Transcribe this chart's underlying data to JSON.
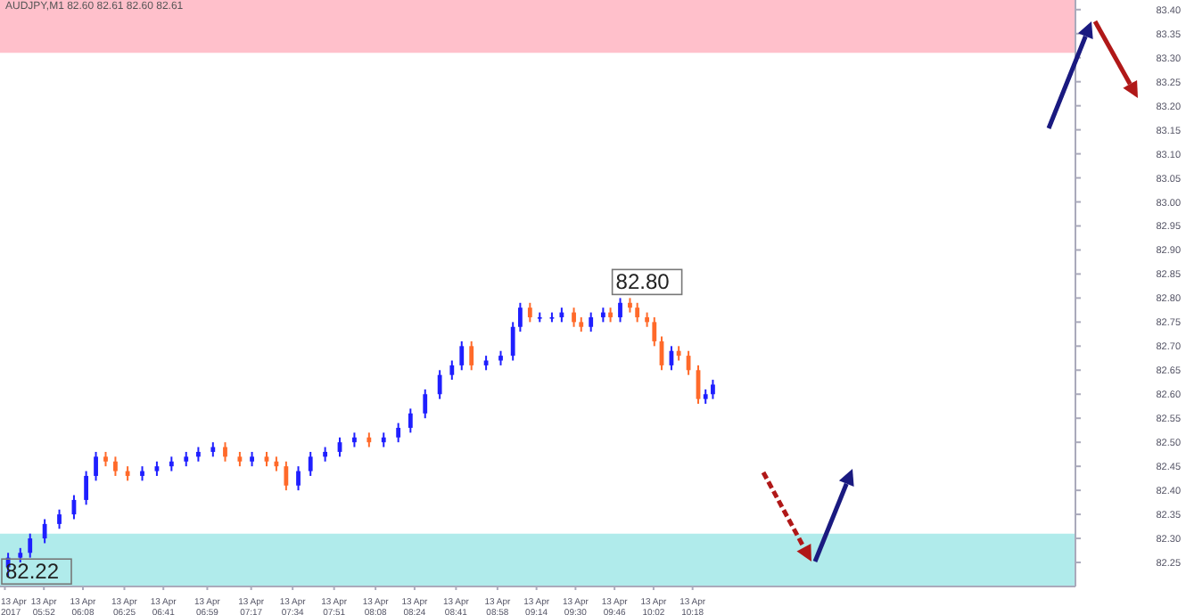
{
  "chart_data": {
    "type": "candlestick",
    "title": "AUDJPY,M1 82.60 82.61 82.60 82.61",
    "x": [
      "2017-04-13T05:37",
      "2017-04-13T05:42",
      "2017-04-13T05:46",
      "2017-04-13T05:52",
      "2017-04-13T05:58",
      "2017-04-13T06:04",
      "2017-04-13T06:09",
      "2017-04-13T06:13",
      "2017-04-13T06:17",
      "2017-04-13T06:21",
      "2017-04-13T06:26",
      "2017-04-13T06:32",
      "2017-04-13T06:38",
      "2017-04-13T06:44",
      "2017-04-13T06:50",
      "2017-04-13T06:55",
      "2017-04-13T07:01",
      "2017-04-13T07:06",
      "2017-04-13T07:12",
      "2017-04-13T07:17",
      "2017-04-13T07:23",
      "2017-04-13T07:27",
      "2017-04-13T07:31",
      "2017-04-13T07:36",
      "2017-04-13T07:41",
      "2017-04-13T07:47",
      "2017-04-13T07:53",
      "2017-04-13T07:59",
      "2017-04-13T08:05",
      "2017-04-13T08:11",
      "2017-04-13T08:17",
      "2017-04-13T08:22",
      "2017-04-13T08:28",
      "2017-04-13T08:34",
      "2017-04-13T08:39",
      "2017-04-13T08:43",
      "2017-04-13T08:47",
      "2017-04-13T08:53",
      "2017-04-13T08:59",
      "2017-04-13T09:04",
      "2017-04-13T09:07",
      "2017-04-13T09:11",
      "2017-04-13T09:15",
      "2017-04-13T09:20",
      "2017-04-13T09:24",
      "2017-04-13T09:29",
      "2017-04-13T09:32",
      "2017-04-13T09:36",
      "2017-04-13T09:41",
      "2017-04-13T09:44",
      "2017-04-13T09:48",
      "2017-04-13T09:52",
      "2017-04-13T09:55",
      "2017-04-13T09:59",
      "2017-04-13T10:02",
      "2017-04-13T10:05",
      "2017-04-13T10:09",
      "2017-04-13T10:12",
      "2017-04-13T10:16",
      "2017-04-13T10:20",
      "2017-04-13T10:23",
      "2017-04-13T10:26"
    ],
    "ohlc": [
      [
        82.24,
        82.27,
        82.22,
        82.26
      ],
      [
        82.26,
        82.28,
        82.25,
        82.27
      ],
      [
        82.27,
        82.31,
        82.26,
        82.3
      ],
      [
        82.3,
        82.34,
        82.29,
        82.33
      ],
      [
        82.33,
        82.36,
        82.32,
        82.35
      ],
      [
        82.35,
        82.39,
        82.34,
        82.38
      ],
      [
        82.38,
        82.44,
        82.37,
        82.43
      ],
      [
        82.43,
        82.48,
        82.42,
        82.47
      ],
      [
        82.47,
        82.48,
        82.45,
        82.46
      ],
      [
        82.46,
        82.47,
        82.43,
        82.44
      ],
      [
        82.44,
        82.45,
        82.42,
        82.43
      ],
      [
        82.43,
        82.45,
        82.42,
        82.44
      ],
      [
        82.44,
        82.46,
        82.43,
        82.45
      ],
      [
        82.45,
        82.47,
        82.44,
        82.46
      ],
      [
        82.46,
        82.48,
        82.45,
        82.47
      ],
      [
        82.47,
        82.49,
        82.46,
        82.48
      ],
      [
        82.48,
        82.5,
        82.47,
        82.49
      ],
      [
        82.49,
        82.5,
        82.46,
        82.47
      ],
      [
        82.47,
        82.48,
        82.45,
        82.46
      ],
      [
        82.46,
        82.48,
        82.45,
        82.47
      ],
      [
        82.47,
        82.48,
        82.45,
        82.46
      ],
      [
        82.46,
        82.47,
        82.44,
        82.45
      ],
      [
        82.45,
        82.46,
        82.4,
        82.41
      ],
      [
        82.41,
        82.45,
        82.4,
        82.44
      ],
      [
        82.44,
        82.48,
        82.43,
        82.47
      ],
      [
        82.47,
        82.49,
        82.46,
        82.48
      ],
      [
        82.48,
        82.51,
        82.47,
        82.5
      ],
      [
        82.5,
        82.52,
        82.49,
        82.51
      ],
      [
        82.51,
        82.52,
        82.49,
        82.5
      ],
      [
        82.5,
        82.52,
        82.49,
        82.51
      ],
      [
        82.51,
        82.54,
        82.5,
        82.53
      ],
      [
        82.53,
        82.57,
        82.52,
        82.56
      ],
      [
        82.56,
        82.61,
        82.55,
        82.6
      ],
      [
        82.6,
        82.65,
        82.59,
        82.64
      ],
      [
        82.64,
        82.67,
        82.63,
        82.66
      ],
      [
        82.66,
        82.71,
        82.65,
        82.7
      ],
      [
        82.7,
        82.71,
        82.65,
        82.66
      ],
      [
        82.66,
        82.68,
        82.65,
        82.67
      ],
      [
        82.67,
        82.69,
        82.66,
        82.68
      ],
      [
        82.68,
        82.75,
        82.67,
        82.74
      ],
      [
        82.74,
        82.79,
        82.73,
        82.78
      ],
      [
        82.78,
        82.79,
        82.75,
        82.76
      ],
      [
        82.76,
        82.77,
        82.75,
        82.76
      ],
      [
        82.76,
        82.77,
        82.75,
        82.76
      ],
      [
        82.76,
        82.78,
        82.75,
        82.77
      ],
      [
        82.77,
        82.78,
        82.74,
        82.75
      ],
      [
        82.75,
        82.76,
        82.73,
        82.74
      ],
      [
        82.74,
        82.77,
        82.73,
        82.76
      ],
      [
        82.76,
        82.78,
        82.75,
        82.77
      ],
      [
        82.77,
        82.78,
        82.75,
        82.76
      ],
      [
        82.76,
        82.8,
        82.75,
        82.79
      ],
      [
        82.79,
        82.8,
        82.77,
        82.78
      ],
      [
        82.78,
        82.79,
        82.75,
        82.76
      ],
      [
        82.76,
        82.77,
        82.74,
        82.75
      ],
      [
        82.75,
        82.76,
        82.7,
        82.71
      ],
      [
        82.71,
        82.72,
        82.65,
        82.66
      ],
      [
        82.66,
        82.7,
        82.65,
        82.69
      ],
      [
        82.69,
        82.7,
        82.67,
        82.68
      ],
      [
        82.68,
        82.69,
        82.64,
        82.65
      ],
      [
        82.65,
        82.66,
        82.58,
        82.59
      ],
      [
        82.59,
        82.61,
        82.58,
        82.6
      ],
      [
        82.6,
        82.63,
        82.59,
        82.62
      ]
    ],
    "colors": [
      "#1f1fff",
      "#1f1fff",
      "#1f1fff",
      "#1f1fff",
      "#1f1fff",
      "#1f1fff",
      "#1f1fff",
      "#1f1fff",
      "#ff6a2a",
      "#ff6a2a",
      "#ff6a2a",
      "#1f1fff",
      "#1f1fff",
      "#1f1fff",
      "#1f1fff",
      "#1f1fff",
      "#1f1fff",
      "#ff6a2a",
      "#ff6a2a",
      "#1f1fff",
      "#ff6a2a",
      "#ff6a2a",
      "#ff6a2a",
      "#1f1fff",
      "#1f1fff",
      "#1f1fff",
      "#1f1fff",
      "#1f1fff",
      "#ff6a2a",
      "#1f1fff",
      "#1f1fff",
      "#1f1fff",
      "#1f1fff",
      "#1f1fff",
      "#1f1fff",
      "#1f1fff",
      "#ff6a2a",
      "#1f1fff",
      "#1f1fff",
      "#1f1fff",
      "#1f1fff",
      "#ff6a2a",
      "#1f1fff",
      "#1f1fff",
      "#1f1fff",
      "#ff6a2a",
      "#ff6a2a",
      "#1f1fff",
      "#1f1fff",
      "#ff6a2a",
      "#1f1fff",
      "#ff6a2a",
      "#ff6a2a",
      "#ff6a2a",
      "#ff6a2a",
      "#ff6a2a",
      "#1f1fff",
      "#ff6a2a",
      "#ff6a2a",
      "#ff6a2a",
      "#1f1fff",
      "#1f1fff"
    ],
    "xlim": [
      "2017-04-13T05:34",
      "2017-04-13T12:55"
    ],
    "xticks": [
      {
        "value": "2017-04-13T05:36",
        "label": "13 Apr 2017"
      },
      {
        "value": "2017-04-13T05:52",
        "label": "13 Apr 05:52"
      },
      {
        "value": "2017-04-13T06:08",
        "label": "13 Apr 06:08"
      },
      {
        "value": "2017-04-13T06:25",
        "label": "13 Apr 06:25"
      },
      {
        "value": "2017-04-13T06:41",
        "label": "13 Apr 06:41"
      },
      {
        "value": "2017-04-13T06:59",
        "label": "13 Apr 06:59"
      },
      {
        "value": "2017-04-13T07:17",
        "label": "13 Apr 07:17"
      },
      {
        "value": "2017-04-13T07:34",
        "label": "13 Apr 07:34"
      },
      {
        "value": "2017-04-13T07:51",
        "label": "13 Apr 07:51"
      },
      {
        "value": "2017-04-13T08:08",
        "label": "13 Apr 08:08"
      },
      {
        "value": "2017-04-13T08:24",
        "label": "13 Apr 08:24"
      },
      {
        "value": "2017-04-13T08:41",
        "label": "13 Apr 08:41"
      },
      {
        "value": "2017-04-13T08:58",
        "label": "13 Apr 08:58"
      },
      {
        "value": "2017-04-13T09:14",
        "label": "13 Apr 09:14"
      },
      {
        "value": "2017-04-13T09:30",
        "label": "13 Apr 09:30"
      },
      {
        "value": "2017-04-13T09:46",
        "label": "13 Apr 09:46"
      },
      {
        "value": "2017-04-13T10:02",
        "label": "13 Apr 10:02"
      },
      {
        "value": "2017-04-13T10:18",
        "label": "13 Apr 10:18"
      }
    ],
    "ylim": [
      82.2,
      83.42
    ],
    "yticks": [
      {
        "value": 82.25,
        "label": "82.25"
      },
      {
        "value": 82.3,
        "label": "82.30"
      },
      {
        "value": 82.35,
        "label": "82.35"
      },
      {
        "value": 82.4,
        "label": "82.40"
      },
      {
        "value": 82.45,
        "label": "82.45"
      },
      {
        "value": 82.5,
        "label": "82.50"
      },
      {
        "value": 82.55,
        "label": "82.55"
      },
      {
        "value": 82.6,
        "label": "82.60"
      },
      {
        "value": 82.65,
        "label": "82.65"
      },
      {
        "value": 82.7,
        "label": "82.70"
      },
      {
        "value": 82.75,
        "label": "82.75"
      },
      {
        "value": 82.8,
        "label": "82.80"
      },
      {
        "value": 82.85,
        "label": "82.85"
      },
      {
        "value": 82.9,
        "label": "82.90"
      },
      {
        "value": 82.95,
        "label": "82.95"
      },
      {
        "value": 83.0,
        "label": "83.00"
      },
      {
        "value": 83.05,
        "label": "83.05"
      },
      {
        "value": 83.1,
        "label": "83.10"
      },
      {
        "value": 83.15,
        "label": "83.15"
      },
      {
        "value": 83.2,
        "label": "83.20"
      },
      {
        "value": 83.25,
        "label": "83.25"
      },
      {
        "value": 83.3,
        "label": "83.30"
      },
      {
        "value": 83.35,
        "label": "83.35"
      },
      {
        "value": 83.4,
        "label": "83.40"
      }
    ],
    "bands": [
      {
        "axis": "y",
        "from": 83.31,
        "to": 83.42,
        "color": "#ffc0cb"
      },
      {
        "axis": "y",
        "from": 82.2,
        "to": 82.31,
        "color": "#b0ebeb"
      }
    ],
    "annotations": [
      {
        "text": "82.80",
        "x": "2017-04-13T09:48",
        "y": 82.8
      },
      {
        "text": "82.22",
        "x": "2017-04-13T05:37",
        "y": 82.22
      }
    ]
  }
}
